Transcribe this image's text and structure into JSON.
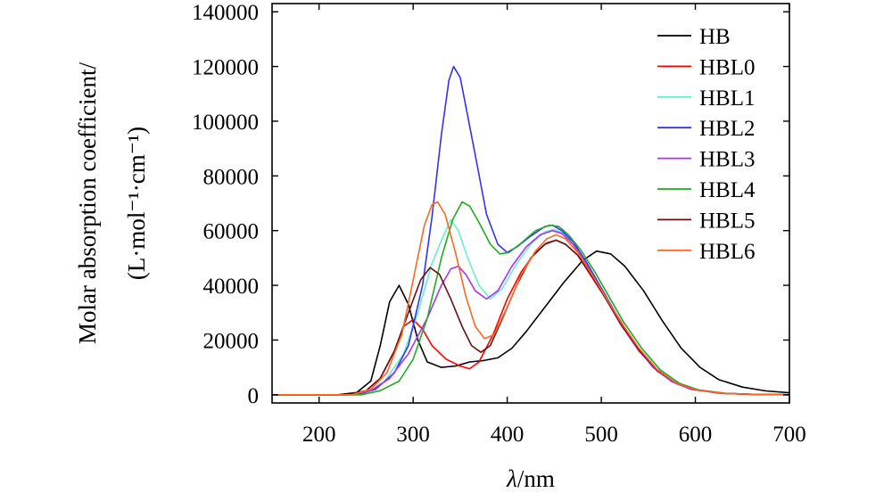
{
  "chart_data": {
    "type": "line",
    "title": "",
    "xlabel_italic": "λ",
    "xlabel_rest": "/nm",
    "ylabel_line1": "Molar absorption coefficient/",
    "ylabel_line2": "(L·mol⁻¹·cm⁻¹)",
    "xlim": [
      150,
      700
    ],
    "ylim": [
      -3000,
      143000
    ],
    "xticks": [
      200,
      300,
      400,
      500,
      600,
      700
    ],
    "yticks": [
      0,
      20000,
      40000,
      60000,
      80000,
      100000,
      120000,
      140000
    ],
    "legend_position": "top-right",
    "grid": false,
    "series": [
      {
        "name": "HB",
        "color": "#000000",
        "points": [
          [
            150,
            0
          ],
          [
            220,
            0
          ],
          [
            240,
            800
          ],
          [
            255,
            5000
          ],
          [
            265,
            18000
          ],
          [
            275,
            34000
          ],
          [
            285,
            40000
          ],
          [
            295,
            33000
          ],
          [
            305,
            20000
          ],
          [
            315,
            12000
          ],
          [
            330,
            10000
          ],
          [
            345,
            10500
          ],
          [
            360,
            12000
          ],
          [
            375,
            12500
          ],
          [
            390,
            13500
          ],
          [
            405,
            17000
          ],
          [
            420,
            23000
          ],
          [
            440,
            32000
          ],
          [
            460,
            41000
          ],
          [
            480,
            49000
          ],
          [
            495,
            52500
          ],
          [
            510,
            51500
          ],
          [
            525,
            47000
          ],
          [
            545,
            38000
          ],
          [
            565,
            27000
          ],
          [
            585,
            17000
          ],
          [
            605,
            10000
          ],
          [
            625,
            5500
          ],
          [
            650,
            2800
          ],
          [
            675,
            1400
          ],
          [
            700,
            700
          ]
        ]
      },
      {
        "name": "HBL0",
        "color": "#ff0000",
        "points": [
          [
            150,
            0
          ],
          [
            230,
            0
          ],
          [
            250,
            1500
          ],
          [
            265,
            6000
          ],
          [
            280,
            16000
          ],
          [
            290,
            25000
          ],
          [
            300,
            27500
          ],
          [
            310,
            24000
          ],
          [
            320,
            18000
          ],
          [
            335,
            13000
          ],
          [
            350,
            10500
          ],
          [
            360,
            9500
          ],
          [
            370,
            12000
          ],
          [
            385,
            22000
          ],
          [
            400,
            35000
          ],
          [
            415,
            45000
          ],
          [
            430,
            52000
          ],
          [
            442,
            55500
          ],
          [
            452,
            56500
          ],
          [
            462,
            55000
          ],
          [
            475,
            51000
          ],
          [
            490,
            43000
          ],
          [
            505,
            35000
          ],
          [
            520,
            26000
          ],
          [
            540,
            16000
          ],
          [
            560,
            8500
          ],
          [
            580,
            4000
          ],
          [
            600,
            1800
          ],
          [
            630,
            500
          ],
          [
            660,
            150
          ],
          [
            700,
            0
          ]
        ]
      },
      {
        "name": "HBL1",
        "color": "#66f0cc",
        "points": [
          [
            150,
            0
          ],
          [
            235,
            0
          ],
          [
            255,
            1500
          ],
          [
            270,
            5000
          ],
          [
            290,
            15000
          ],
          [
            305,
            30000
          ],
          [
            320,
            48000
          ],
          [
            332,
            58000
          ],
          [
            340,
            64000
          ],
          [
            348,
            60000
          ],
          [
            358,
            50000
          ],
          [
            370,
            40000
          ],
          [
            382,
            35000
          ],
          [
            395,
            39000
          ],
          [
            410,
            48000
          ],
          [
            425,
            55000
          ],
          [
            440,
            59500
          ],
          [
            450,
            60500
          ],
          [
            460,
            59000
          ],
          [
            475,
            53000
          ],
          [
            490,
            45000
          ],
          [
            505,
            36000
          ],
          [
            520,
            27000
          ],
          [
            540,
            17000
          ],
          [
            560,
            9000
          ],
          [
            580,
            4200
          ],
          [
            600,
            1800
          ],
          [
            630,
            500
          ],
          [
            660,
            150
          ],
          [
            700,
            0
          ]
        ]
      },
      {
        "name": "HBL2",
        "color": "#3333ee",
        "points": [
          [
            150,
            0
          ],
          [
            240,
            0
          ],
          [
            260,
            2000
          ],
          [
            280,
            8000
          ],
          [
            295,
            18000
          ],
          [
            310,
            40000
          ],
          [
            320,
            65000
          ],
          [
            330,
            95000
          ],
          [
            338,
            115000
          ],
          [
            343,
            120000
          ],
          [
            350,
            116000
          ],
          [
            358,
            102000
          ],
          [
            368,
            84000
          ],
          [
            378,
            66000
          ],
          [
            390,
            55000
          ],
          [
            400,
            52000
          ],
          [
            410,
            54000
          ],
          [
            425,
            58000
          ],
          [
            440,
            61500
          ],
          [
            448,
            62000
          ],
          [
            458,
            60000
          ],
          [
            470,
            56000
          ],
          [
            485,
            48000
          ],
          [
            500,
            39000
          ],
          [
            515,
            30000
          ],
          [
            535,
            19000
          ],
          [
            555,
            10500
          ],
          [
            575,
            5000
          ],
          [
            595,
            2200
          ],
          [
            625,
            600
          ],
          [
            660,
            150
          ],
          [
            700,
            0
          ]
        ]
      },
      {
        "name": "HBL3",
        "color": "#aa33ee",
        "points": [
          [
            150,
            0
          ],
          [
            235,
            0
          ],
          [
            255,
            1500
          ],
          [
            275,
            6000
          ],
          [
            295,
            15000
          ],
          [
            315,
            28000
          ],
          [
            330,
            40000
          ],
          [
            340,
            46000
          ],
          [
            348,
            47000
          ],
          [
            356,
            44000
          ],
          [
            366,
            38000
          ],
          [
            378,
            35000
          ],
          [
            390,
            38000
          ],
          [
            405,
            47000
          ],
          [
            420,
            54000
          ],
          [
            435,
            58500
          ],
          [
            448,
            60000
          ],
          [
            458,
            59000
          ],
          [
            470,
            55000
          ],
          [
            485,
            47000
          ],
          [
            500,
            38000
          ],
          [
            515,
            29000
          ],
          [
            535,
            18500
          ],
          [
            555,
            10000
          ],
          [
            575,
            4800
          ],
          [
            595,
            2000
          ],
          [
            625,
            600
          ],
          [
            660,
            150
          ],
          [
            700,
            0
          ]
        ]
      },
      {
        "name": "HBL4",
        "color": "#22aa22",
        "points": [
          [
            150,
            0
          ],
          [
            245,
            0
          ],
          [
            265,
            1500
          ],
          [
            285,
            5000
          ],
          [
            300,
            13000
          ],
          [
            315,
            28000
          ],
          [
            330,
            50000
          ],
          [
            342,
            64000
          ],
          [
            352,
            70500
          ],
          [
            360,
            69000
          ],
          [
            370,
            63000
          ],
          [
            382,
            55000
          ],
          [
            392,
            51500
          ],
          [
            402,
            52000
          ],
          [
            415,
            55500
          ],
          [
            430,
            60000
          ],
          [
            445,
            62000
          ],
          [
            455,
            61500
          ],
          [
            465,
            58500
          ],
          [
            478,
            53000
          ],
          [
            493,
            45000
          ],
          [
            508,
            36000
          ],
          [
            523,
            27000
          ],
          [
            543,
            17000
          ],
          [
            563,
            9000
          ],
          [
            583,
            4200
          ],
          [
            603,
            1800
          ],
          [
            633,
            500
          ],
          [
            665,
            120
          ],
          [
            700,
            0
          ]
        ]
      },
      {
        "name": "HBL5",
        "color": "#661111",
        "points": [
          [
            150,
            0
          ],
          [
            230,
            0
          ],
          [
            250,
            1500
          ],
          [
            265,
            6000
          ],
          [
            280,
            16000
          ],
          [
            295,
            30000
          ],
          [
            308,
            42000
          ],
          [
            318,
            46500
          ],
          [
            328,
            44000
          ],
          [
            340,
            35000
          ],
          [
            352,
            25000
          ],
          [
            362,
            18000
          ],
          [
            372,
            15500
          ],
          [
            382,
            18000
          ],
          [
            395,
            28000
          ],
          [
            410,
            40000
          ],
          [
            425,
            50000
          ],
          [
            440,
            55000
          ],
          [
            452,
            56500
          ],
          [
            462,
            55000
          ],
          [
            475,
            51000
          ],
          [
            490,
            43500
          ],
          [
            505,
            35000
          ],
          [
            520,
            26500
          ],
          [
            540,
            16500
          ],
          [
            560,
            8800
          ],
          [
            580,
            4200
          ],
          [
            600,
            1800
          ],
          [
            630,
            500
          ],
          [
            660,
            150
          ],
          [
            700,
            0
          ]
        ]
      },
      {
        "name": "HBL6",
        "color": "#ff6622",
        "points": [
          [
            150,
            0
          ],
          [
            235,
            0
          ],
          [
            255,
            2000
          ],
          [
            272,
            8000
          ],
          [
            288,
            22000
          ],
          [
            300,
            42000
          ],
          [
            312,
            62000
          ],
          [
            320,
            69500
          ],
          [
            326,
            70500
          ],
          [
            334,
            66000
          ],
          [
            345,
            52000
          ],
          [
            356,
            36000
          ],
          [
            366,
            25000
          ],
          [
            376,
            20500
          ],
          [
            386,
            22000
          ],
          [
            400,
            32000
          ],
          [
            415,
            44000
          ],
          [
            430,
            52500
          ],
          [
            442,
            57000
          ],
          [
            452,
            58500
          ],
          [
            462,
            57000
          ],
          [
            475,
            52000
          ],
          [
            490,
            44000
          ],
          [
            505,
            35500
          ],
          [
            520,
            27000
          ],
          [
            540,
            17000
          ],
          [
            560,
            9000
          ],
          [
            580,
            4200
          ],
          [
            600,
            1800
          ],
          [
            630,
            500
          ],
          [
            660,
            150
          ],
          [
            700,
            0
          ]
        ]
      }
    ]
  }
}
